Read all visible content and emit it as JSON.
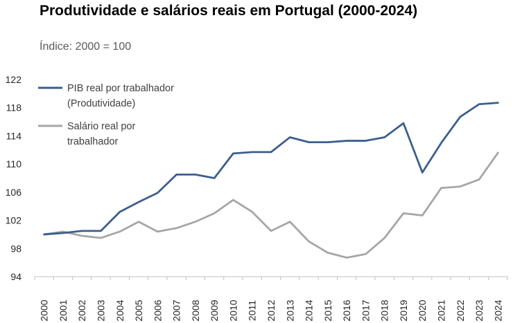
{
  "chart_data": {
    "type": "line",
    "title": "Produtividade e salários reais em Portugal (2000-2024)",
    "subtitle": "Índice: 2000 = 100",
    "xlabel": "",
    "ylabel": "",
    "ylim": [
      94,
      122
    ],
    "yticks": [
      "94",
      "98",
      "102",
      "106",
      "110",
      "114",
      "118",
      "122"
    ],
    "categories": [
      "2000",
      "2001",
      "2002",
      "2003",
      "2004",
      "2005",
      "2006",
      "2007",
      "2008",
      "2009",
      "2010",
      "2011",
      "2012",
      "2013",
      "2014",
      "2015",
      "2016",
      "2017",
      "2018",
      "2019",
      "2020",
      "2021",
      "2022",
      "2023",
      "2024"
    ],
    "legend_position": "top-left",
    "series": [
      {
        "name_line1": "PIB real por trabalhador",
        "name_line2": "(Produtividade)",
        "color": "#3B5E8C",
        "values": [
          100.0,
          100.2,
          100.5,
          100.5,
          103.2,
          104.6,
          105.9,
          108.5,
          108.5,
          108.0,
          111.5,
          111.7,
          111.7,
          113.8,
          113.1,
          113.1,
          113.3,
          113.3,
          113.8,
          115.8,
          108.8,
          113.0,
          116.7,
          118.5,
          118.7
        ]
      },
      {
        "name_line1": "Salário real por",
        "name_line2": "trabalhador",
        "color": "#A6A6A6",
        "values": [
          100.0,
          100.4,
          99.8,
          99.5,
          100.4,
          101.8,
          100.4,
          100.9,
          101.8,
          103.0,
          104.9,
          103.2,
          100.5,
          101.8,
          99.0,
          97.4,
          96.7,
          97.2,
          99.5,
          103.0,
          102.7,
          106.6,
          106.8,
          107.8,
          111.6
        ]
      }
    ]
  }
}
